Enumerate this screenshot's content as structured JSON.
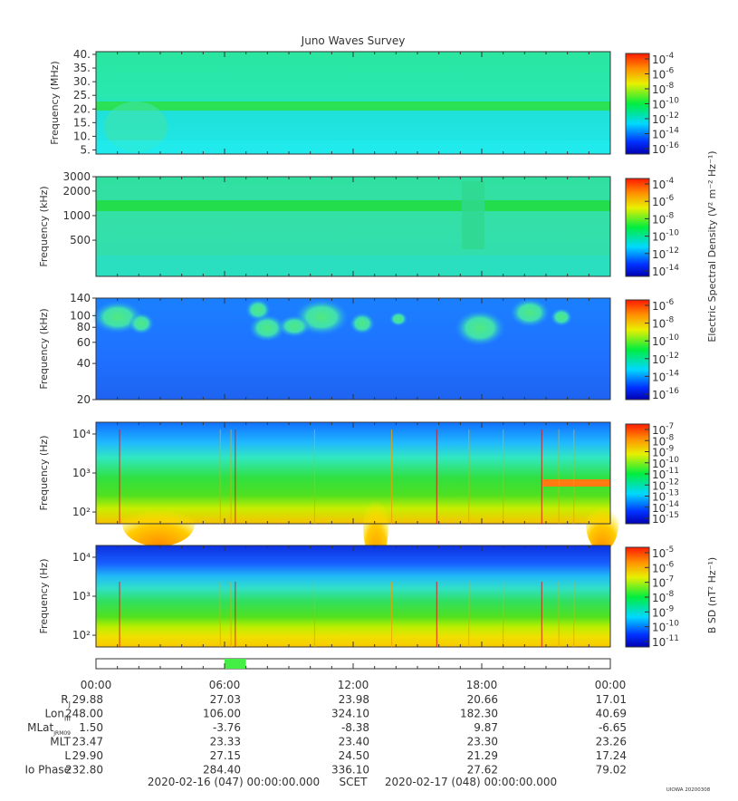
{
  "title": "Juno Waves Survey",
  "footer": {
    "start": "2020-02-16 (047) 00:00:00.000",
    "mid": "SCET",
    "end": "2020-02-17 (048) 00:00:00.000",
    "stamp": "UIOWA 20200308"
  },
  "chart_data": [
    {
      "type": "heatmap",
      "ylabel": "Frequency (MHz)",
      "yscale": "linear",
      "ylim": [
        3.5,
        41
      ],
      "yticks": [
        "40.",
        "35.",
        "30.",
        "25.",
        "20.",
        "15.",
        "10.",
        "5."
      ],
      "ytick_values": [
        40,
        35,
        30,
        25,
        20,
        15,
        10,
        5
      ],
      "colorbar": {
        "ticks": [
          "-4",
          "-6",
          "-8",
          "-10",
          "-12",
          "-14",
          "-16"
        ],
        "label": ""
      },
      "features": [
        "narrow band near 21 MHz across the full day"
      ]
    },
    {
      "type": "heatmap",
      "ylabel": "Frequency (kHz)",
      "yscale": "log",
      "ylim": [
        180,
        3000
      ],
      "yticks": [
        "3000",
        "2000",
        "1000",
        "500"
      ],
      "ytick_values": [
        3000,
        2000,
        1000,
        500
      ],
      "colorbar": {
        "ticks": [
          "-4",
          "-6",
          "-8",
          "-10",
          "-12",
          "-14"
        ],
        "label": "Electric Spectral Density (V² m⁻² Hz⁻¹)"
      },
      "features": [
        "band near 1300 kHz",
        "disturbance near 17:00"
      ]
    },
    {
      "type": "heatmap",
      "ylabel": "Frequency (kHz)",
      "yscale": "log",
      "ylim": [
        20,
        140
      ],
      "yticks": [
        "140",
        "100",
        "80",
        "60",
        "40",
        "20"
      ],
      "ytick_values": [
        140,
        100,
        80,
        60,
        40,
        20
      ],
      "colorbar": {
        "ticks": [
          "-6",
          "-8",
          "-10",
          "-12",
          "-14",
          "-16"
        ],
        "label": ""
      },
      "features": [
        "bursts 80-120 kHz around 01:00, 07:00-12:00, 17:00-21:00"
      ]
    },
    {
      "type": "heatmap",
      "ylabel": "Frequency (Hz)",
      "yscale": "log",
      "ylim": [
        50,
        20000
      ],
      "yticks": [
        "10⁴",
        "10³",
        "10²"
      ],
      "ytick_values": [
        10000,
        1000,
        100
      ],
      "colorbar": {
        "ticks": [
          "-7",
          "-8",
          "-9",
          "-10",
          "-11",
          "-12",
          "-13",
          "-14",
          "-15"
        ],
        "label": ""
      },
      "features": [
        "band near 600 Hz from about 20:45 to 24:00"
      ]
    },
    {
      "type": "heatmap",
      "ylabel": "Frequency (Hz)",
      "yscale": "log",
      "ylim": [
        50,
        20000
      ],
      "yticks": [
        "10⁴",
        "10³",
        "10²"
      ],
      "ytick_values": [
        10000,
        1000,
        100
      ],
      "colorbar": {
        "ticks": [
          "-5",
          "-6",
          "-7",
          "-8",
          "-9",
          "-10",
          "-11"
        ],
        "label": "B SD (nT² Hz⁻¹)"
      },
      "features": [
        "intense low-frequency noise below 200 Hz"
      ]
    }
  ],
  "highlight": {
    "start_hour": 6.0,
    "end_hour": 7.0,
    "color": "#44ee44"
  },
  "time_axis": {
    "labels": [
      "00:00",
      "06:00",
      "12:00",
      "18:00",
      "00:00"
    ],
    "hours": [
      0,
      6,
      12,
      18,
      24
    ]
  },
  "ephemeris": {
    "rows": [
      {
        "label": "R",
        "sub": "J",
        "values": [
          "29.88",
          "27.03",
          "23.98",
          "20.66",
          "17.01"
        ]
      },
      {
        "label": "Lon",
        "sub": "III",
        "values": [
          "248.00",
          "106.00",
          "324.10",
          "182.30",
          "40.69"
        ]
      },
      {
        "label": "MLat",
        "sub": "JRM09",
        "values": [
          "1.50",
          "-3.76",
          "-8.38",
          "9.87",
          "-6.65"
        ]
      },
      {
        "label": "MLT",
        "sub": "",
        "values": [
          "23.47",
          "23.33",
          "23.40",
          "23.30",
          "23.26"
        ]
      },
      {
        "label": "L",
        "sub": "",
        "values": [
          "29.90",
          "27.15",
          "24.50",
          "21.29",
          "17.24"
        ]
      },
      {
        "label": "Io Phase",
        "sub": "",
        "values": [
          "232.80",
          "284.40",
          "336.10",
          "27.62",
          "79.02"
        ]
      }
    ]
  }
}
